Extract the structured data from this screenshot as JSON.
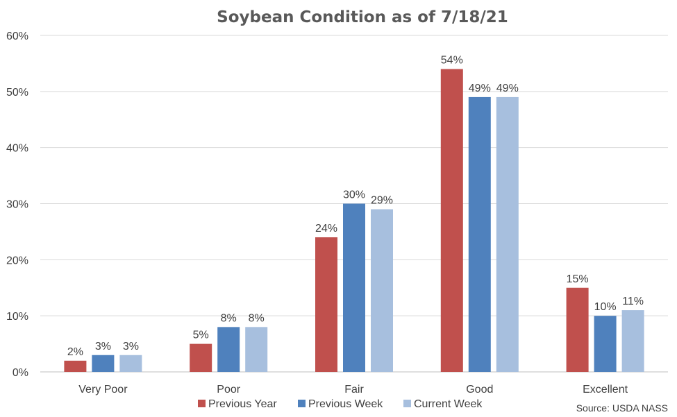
{
  "chart_data": {
    "type": "bar",
    "title": "Soybean Condition as of 7/18/21",
    "categories": [
      "Very Poor",
      "Poor",
      "Fair",
      "Good",
      "Excellent"
    ],
    "series": [
      {
        "name": "Previous Year",
        "color": "#c0504d",
        "values": [
          2,
          5,
          24,
          54,
          15
        ]
      },
      {
        "name": "Previous Week",
        "color": "#4f81bd",
        "values": [
          3,
          8,
          30,
          49,
          10
        ]
      },
      {
        "name": "Current Week",
        "color": "#a7bfde",
        "values": [
          3,
          8,
          29,
          49,
          11
        ]
      }
    ],
    "ylim": [
      0,
      60
    ],
    "yticks": [
      0,
      10,
      20,
      30,
      40,
      50,
      60
    ],
    "value_suffix": "%",
    "grid": true,
    "legend_position": "bottom",
    "source": "Source: USDA NASS"
  }
}
